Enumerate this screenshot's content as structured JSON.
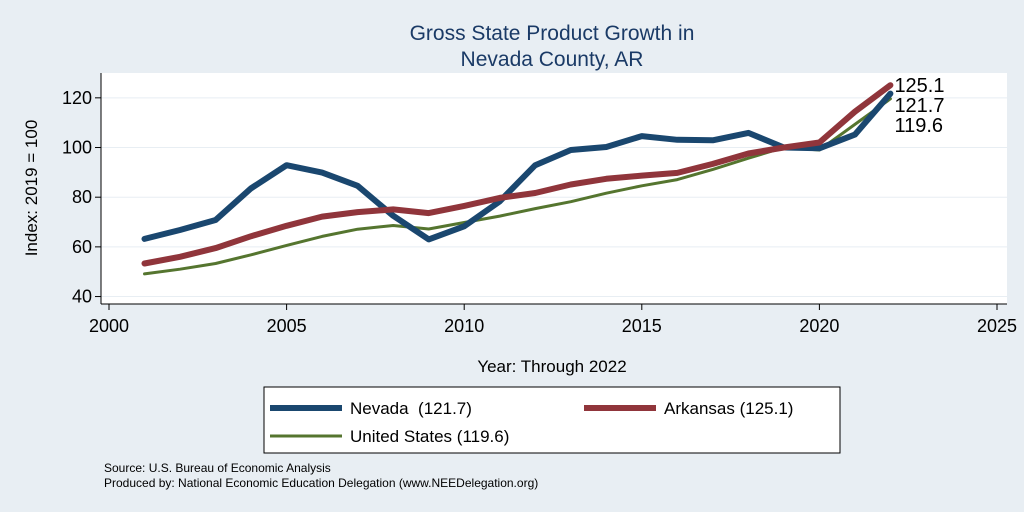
{
  "chart_data": {
    "type": "line",
    "title": [
      "Gross State Product Growth in",
      "Nevada County, AR"
    ],
    "xlabel": "Year: Through 2022",
    "ylabel": "Index: 2019 = 100",
    "xlim": [
      2000,
      2025
    ],
    "ylim": [
      37,
      130
    ],
    "xticks": [
      2000,
      2005,
      2010,
      2015,
      2020,
      2025
    ],
    "yticks": [
      40,
      60,
      80,
      100,
      120
    ],
    "grid": true,
    "legend_position": "bottom",
    "x": [
      2001,
      2002,
      2003,
      2004,
      2005,
      2006,
      2007,
      2008,
      2009,
      2010,
      2011,
      2012,
      2013,
      2014,
      2015,
      2016,
      2017,
      2018,
      2019,
      2020,
      2021,
      2022
    ],
    "series": [
      {
        "name": "Nevada",
        "legend": "Nevada  (121.7)",
        "end_label": "121.7",
        "color": "#1a476f",
        "values": [
          63.2,
          66.8,
          70.8,
          83.6,
          92.9,
          89.9,
          84.6,
          72.5,
          63.0,
          68.3,
          78.3,
          92.9,
          99.0,
          100.2,
          104.6,
          103.1,
          102.9,
          105.9,
          100.0,
          99.7,
          105.2,
          121.7
        ]
      },
      {
        "name": "Arkansas",
        "legend": "Arkansas (125.1)",
        "end_label": "125.1",
        "color": "#90353b",
        "values": [
          53.3,
          56.0,
          59.5,
          64.3,
          68.5,
          72.2,
          74.0,
          75.1,
          73.6,
          76.5,
          79.7,
          81.7,
          85.1,
          87.4,
          88.7,
          89.8,
          93.4,
          97.6,
          100.0,
          102.0,
          114.4,
          125.1
        ]
      },
      {
        "name": "United States",
        "legend": "United States (119.6)",
        "end_label": "119.6",
        "color": "#55752f",
        "values": [
          49.1,
          51.0,
          53.3,
          56.8,
          60.6,
          64.2,
          67.1,
          68.6,
          67.2,
          69.8,
          72.4,
          75.4,
          78.2,
          81.6,
          84.6,
          87.1,
          91.2,
          95.7,
          100.0,
          99.0,
          109.3,
          119.6
        ]
      }
    ]
  },
  "notes": {
    "source": "Source: U.S. Bureau of Economic Analysis",
    "produced_by": "Produced by: National Economic Education Delegation (www.NEEDelegation.org)"
  }
}
